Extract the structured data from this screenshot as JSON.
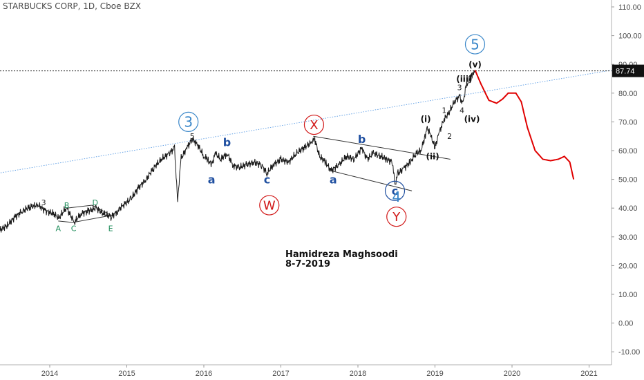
{
  "header": {
    "title": "STARBUCKS CORP, 1D, Cboe BZX"
  },
  "annotation": {
    "author": "Hamidreza Maghsoodi",
    "date": "8-7-2019"
  },
  "price_badge": "87.74",
  "colors": {
    "price": "#1b1b1b",
    "forecast": "#e00000",
    "trend": "#68a4e6",
    "wave_blue": "#1f4fa0",
    "wave_red": "#d11818",
    "wave_green": "#1e8c5a",
    "axis_text": "#4a4a4a"
  },
  "chart_data": {
    "type": "line",
    "title": "STARBUCKS CORP, 1D, Cboe BZX",
    "xlabel": "",
    "ylabel": "",
    "ylim": [
      -10,
      110
    ],
    "xlim": [
      "2013-03",
      "2021-04"
    ],
    "y_ticks": [
      "110.00",
      "100.00",
      "90.00",
      "80.00",
      "70.00",
      "60.00",
      "50.00",
      "40.00",
      "30.00",
      "20.00",
      "10.00",
      "0.00",
      "-10.00"
    ],
    "x_ticks": [
      "2014",
      "2015",
      "2016",
      "2017",
      "2018",
      "2019",
      "2020",
      "2021"
    ],
    "grid": false,
    "last_price": 87.74,
    "series": [
      {
        "values": [
          [
            "2013.30",
            31.5
          ],
          [
            "2013.45",
            34
          ],
          [
            "2013.55",
            37
          ],
          [
            "2013.65",
            39
          ],
          [
            "2013.75",
            40.5
          ],
          [
            "2013.85",
            41
          ],
          [
            "2013.95",
            39
          ],
          [
            "2014.05",
            38
          ],
          [
            "2014.12",
            36.5
          ],
          [
            "2014.18",
            39
          ],
          [
            "2014.22",
            40
          ],
          [
            "2014.28",
            37
          ],
          [
            "2014.32",
            35
          ],
          [
            "2014.40",
            38
          ],
          [
            "2014.50",
            39
          ],
          [
            "2014.60",
            40
          ],
          [
            "2014.70",
            38
          ],
          [
            "2014.80",
            37
          ],
          [
            "2014.88",
            39
          ],
          [
            "2014.95",
            41
          ],
          [
            "2015.05",
            43
          ],
          [
            "2015.15",
            47
          ],
          [
            "2015.25",
            50
          ],
          [
            "2015.35",
            54
          ],
          [
            "2015.45",
            57
          ],
          [
            "2015.55",
            59
          ],
          [
            "2015.62",
            61
          ],
          [
            "2015.66",
            42
          ],
          [
            "2015.70",
            57
          ],
          [
            "2015.78",
            61
          ],
          [
            "2015.85",
            64
          ],
          [
            "2015.92",
            62
          ],
          [
            "2016.00",
            58
          ],
          [
            "2016.05",
            57
          ],
          [
            "2016.10",
            55
          ],
          [
            "2016.15",
            59
          ],
          [
            "2016.22",
            57
          ],
          [
            "2016.30",
            59
          ],
          [
            "2016.38",
            55
          ],
          [
            "2016.45",
            54
          ],
          [
            "2016.55",
            55
          ],
          [
            "2016.65",
            56
          ],
          [
            "2016.75",
            55
          ],
          [
            "2016.82",
            52
          ],
          [
            "2016.90",
            55
          ],
          [
            "2017.00",
            57
          ],
          [
            "2017.10",
            56
          ],
          [
            "2017.20",
            59
          ],
          [
            "2017.30",
            61
          ],
          [
            "2017.40",
            63
          ],
          [
            "2017.44",
            64
          ],
          [
            "2017.50",
            58
          ],
          [
            "2017.58",
            56
          ],
          [
            "2017.65",
            53
          ],
          [
            "2017.75",
            55
          ],
          [
            "2017.85",
            58
          ],
          [
            "2017.95",
            57
          ],
          [
            "2018.05",
            61
          ],
          [
            "2018.12",
            57
          ],
          [
            "2018.20",
            59
          ],
          [
            "2018.30",
            58
          ],
          [
            "2018.38",
            57
          ],
          [
            "2018.45",
            56
          ],
          [
            "2018.48",
            48
          ],
          [
            "2018.52",
            52
          ],
          [
            "2018.60",
            54
          ],
          [
            "2018.68",
            56
          ],
          [
            "2018.75",
            59
          ],
          [
            "2018.82",
            60
          ],
          [
            "2018.87",
            65
          ],
          [
            "2018.90",
            68
          ],
          [
            "2018.95",
            65
          ],
          [
            "2019.00",
            61
          ],
          [
            "2019.05",
            66
          ],
          [
            "2019.12",
            71
          ],
          [
            "2019.18",
            73
          ],
          [
            "2019.25",
            77
          ],
          [
            "2019.32",
            79
          ],
          [
            "2019.36",
            76
          ],
          [
            "2019.40",
            82
          ],
          [
            "2019.45",
            85
          ],
          [
            "2019.50",
            87.5
          ],
          [
            "2019.52",
            88
          ]
        ]
      },
      {
        "values": [
          [
            "2019.52",
            88
          ],
          [
            "2019.60",
            83
          ],
          [
            "2019.70",
            77.5
          ],
          [
            "2019.80",
            76.5
          ],
          [
            "2019.88",
            78
          ],
          [
            "2019.95",
            80
          ],
          [
            "2020.05",
            80
          ],
          [
            "2020.12",
            77
          ],
          [
            "2020.20",
            68
          ],
          [
            "2020.30",
            60
          ],
          [
            "2020.40",
            57
          ],
          [
            "2020.50",
            56.5
          ],
          [
            "2020.60",
            57
          ],
          [
            "2020.68",
            58
          ],
          [
            "2020.75",
            56
          ],
          [
            "2020.80",
            50
          ]
        ]
      }
    ],
    "wave_labels": [
      {
        "text": "3",
        "x": "2013.92",
        "y": 42
      },
      {
        "text": "A",
        "x": "2014.11",
        "y": 33
      },
      {
        "text": "B",
        "x": "2014.22",
        "y": 41
      },
      {
        "text": "C",
        "x": "2014.31",
        "y": 33
      },
      {
        "text": "D",
        "x": "2014.59",
        "y": 42
      },
      {
        "text": "E",
        "x": "2014.79",
        "y": 33
      },
      {
        "text": "3",
        "x": "2015.80",
        "y": 70
      },
      {
        "text": "5",
        "x": "2015.85",
        "y": 65
      },
      {
        "text": "b",
        "x": "2016.30",
        "y": 63
      },
      {
        "text": "a",
        "x": "2016.10",
        "y": 50
      },
      {
        "text": "c",
        "x": "2016.82",
        "y": 50
      },
      {
        "text": "W",
        "x": "2016.85",
        "y": 41
      },
      {
        "text": "X",
        "x": "2017.43",
        "y": 69
      },
      {
        "text": "a",
        "x": "2017.68",
        "y": 50
      },
      {
        "text": "b",
        "x": "2018.05",
        "y": 64
      },
      {
        "text": "c",
        "x": "2018.48",
        "y": 46
      },
      {
        "text": "4",
        "x": "2018.50",
        "y": 44
      },
      {
        "text": "Y",
        "x": "2018.50",
        "y": 37
      },
      {
        "text": "(i)",
        "x": "2018.88",
        "y": 71
      },
      {
        "text": "(ii)",
        "x": "2018.97",
        "y": 58
      },
      {
        "text": "1",
        "x": "2019.12",
        "y": 74
      },
      {
        "text": "2",
        "x": "2019.19",
        "y": 65
      },
      {
        "text": "3",
        "x": "2019.32",
        "y": 82
      },
      {
        "text": "(iii)",
        "x": "2019.38",
        "y": 85
      },
      {
        "text": "4",
        "x": "2019.35",
        "y": 74
      },
      {
        "text": "(iv)",
        "x": "2019.48",
        "y": 71
      },
      {
        "text": "(v)",
        "x": "2019.52",
        "y": 90
      },
      {
        "text": "5",
        "x": "2019.52",
        "y": 97
      }
    ]
  }
}
